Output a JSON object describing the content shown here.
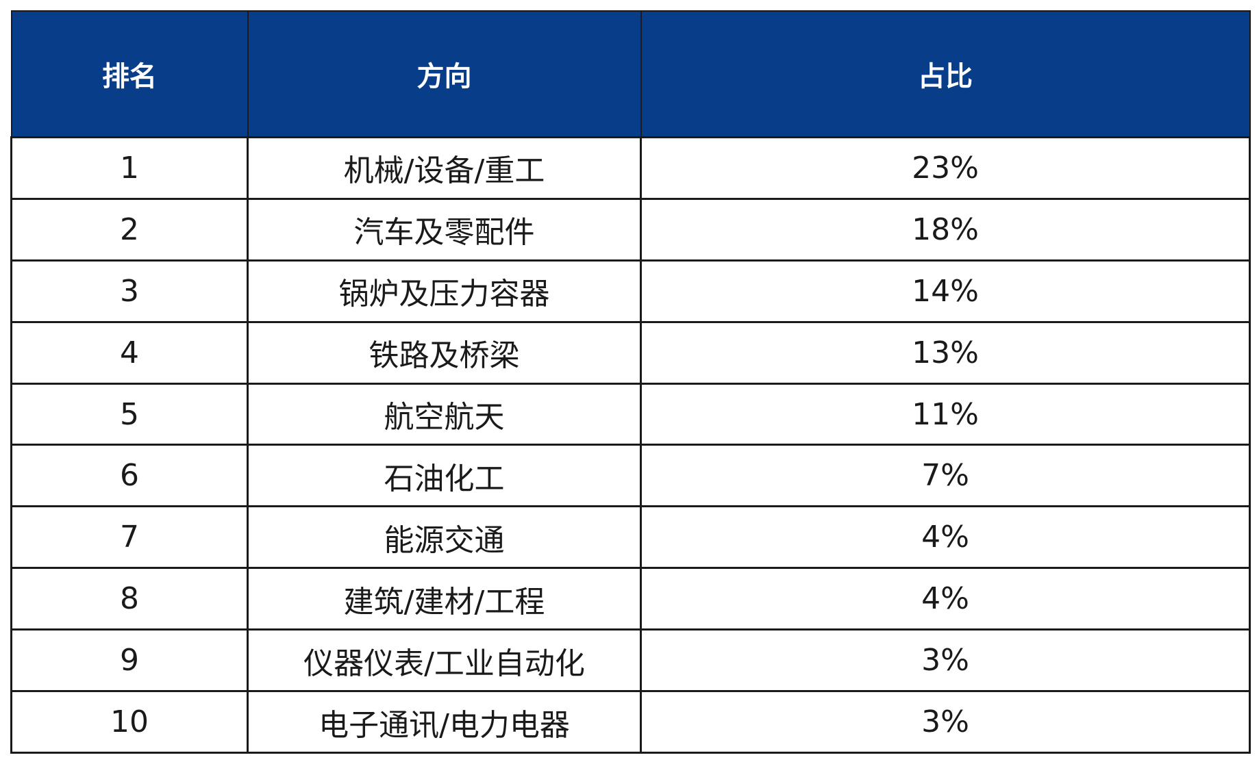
{
  "colors": {
    "header_bg": "#083d8a",
    "header_text": "#ffffff",
    "border": "#1a1a1a",
    "body_text": "#1a1a1a"
  },
  "chart_data": {
    "type": "table",
    "columns": [
      "排名",
      "方向",
      "占比"
    ],
    "rows": [
      [
        "1",
        "机械/设备/重工",
        "23%"
      ],
      [
        "2",
        "汽车及零配件",
        "18%"
      ],
      [
        "3",
        "锅炉及压力容器",
        "14%"
      ],
      [
        "4",
        "铁路及桥梁",
        "13%"
      ],
      [
        "5",
        "航空航天",
        "11%"
      ],
      [
        "6",
        "石油化工",
        "7%"
      ],
      [
        "7",
        "能源交通",
        "4%"
      ],
      [
        "8",
        "建筑/建材/工程",
        "4%"
      ],
      [
        "9",
        "仪器仪表/工业自动化",
        "3%"
      ],
      [
        "10",
        "电子通讯/电力电器",
        "3%"
      ]
    ]
  }
}
